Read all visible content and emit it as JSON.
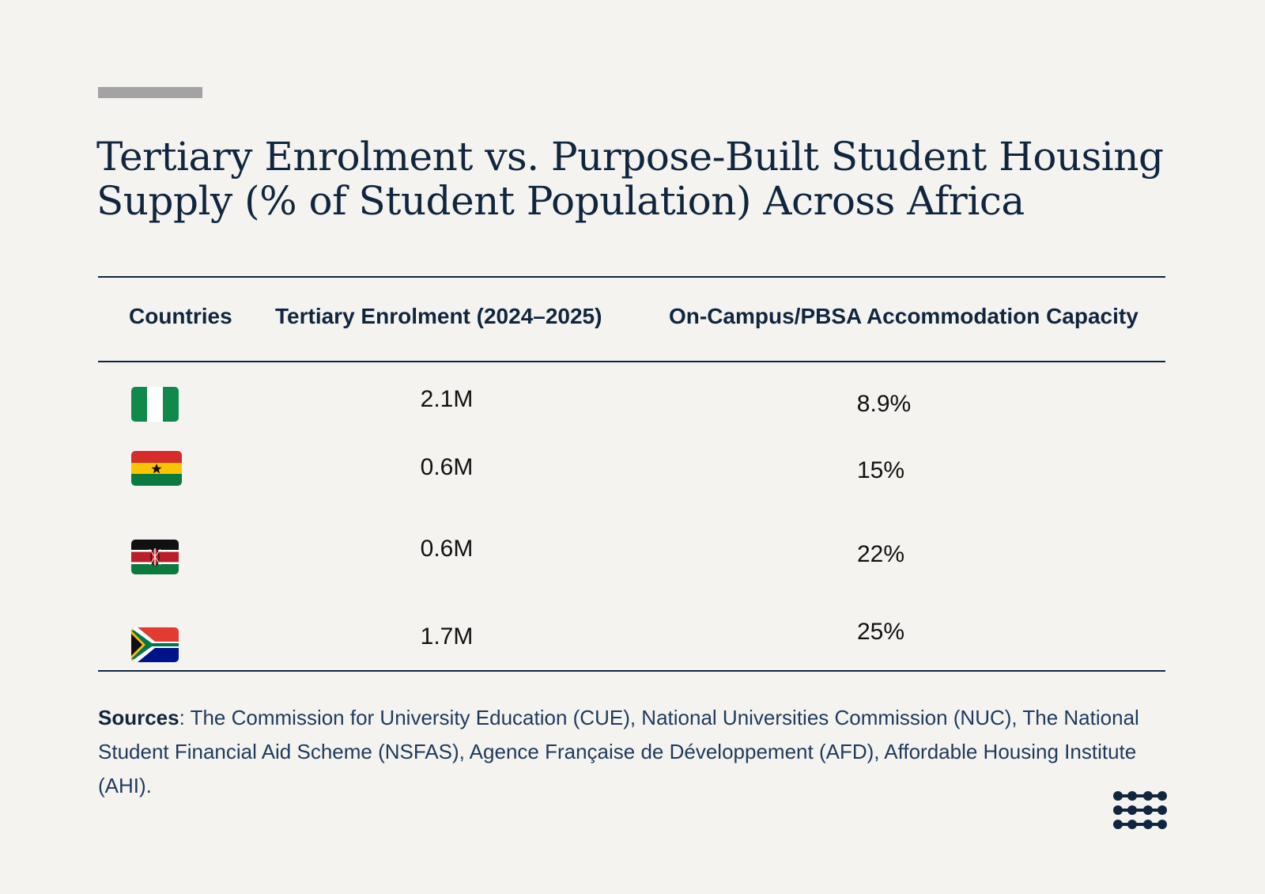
{
  "title": "Tertiary Enrolment vs. Purpose-Built Student Housing Supply (% of Student Population) Across Africa",
  "table": {
    "headers": [
      "Countries",
      "Tertiary Enrolment (2024–2025)",
      "On-Campus/PBSA Accommodation Capacity"
    ],
    "rows": [
      {
        "flag_icon": "nigeria-flag-icon",
        "enrolment": "2.1M",
        "capacity": "8.9%"
      },
      {
        "flag_icon": "ghana-flag-icon",
        "enrolment": "0.6M",
        "capacity": "15%"
      },
      {
        "flag_icon": "kenya-flag-icon",
        "enrolment": "0.6M",
        "capacity": "22%"
      },
      {
        "flag_icon": "south-africa-flag-icon",
        "enrolment": "1.7M",
        "capacity": "25%"
      }
    ]
  },
  "chart_data": {
    "type": "table",
    "title": "Tertiary Enrolment vs. Purpose-Built Student Housing Supply (% of Student Population) Across Africa",
    "columns": [
      "Countries",
      "Tertiary Enrolment (2024–2025)",
      "On-Campus/PBSA Accommodation Capacity"
    ],
    "rows": [
      [
        "Nigeria (flag)",
        "2.1M",
        "8.9%"
      ],
      [
        "Ghana (flag)",
        "0.6M",
        "15%"
      ],
      [
        "Kenya (flag)",
        "0.6M",
        "22%"
      ],
      [
        "South Africa (flag)",
        "1.7M",
        "25%"
      ]
    ],
    "enrolment_millions": [
      2.1,
      0.6,
      0.6,
      1.7
    ],
    "capacity_percent": [
      8.9,
      15,
      22,
      25
    ]
  },
  "sources": {
    "label": "Sources",
    "text": ": The Commission for University Education (CUE), National Universities Commission (NUC), The National Student Financial Aid Scheme (NSFAS), Agence Française de Développement (AFD), Affordable Housing Institute (AHI)."
  },
  "colors": {
    "background": "#f4f3f0",
    "navy": "#10263f",
    "accent_bar": "#a3a3a3"
  },
  "logo_icon": "dots-logo-icon"
}
